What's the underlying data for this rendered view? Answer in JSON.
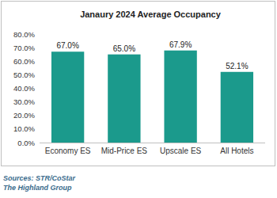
{
  "chart_data": {
    "type": "bar",
    "title": "Janaury 2024 Average Occupancy",
    "categories": [
      "Economy ES",
      "Mid-Price ES",
      "Upscale ES",
      "All Hotels"
    ],
    "values": [
      67.0,
      65.0,
      67.9,
      52.1
    ],
    "value_labels": [
      "67.0%",
      "65.0%",
      "67.9%",
      "52.1%"
    ],
    "color": "#1b9a8c",
    "ylim": [
      0,
      80
    ],
    "yticks": [
      {
        "value": 0,
        "label": "0.0%"
      },
      {
        "value": 10,
        "label": "10.0%"
      },
      {
        "value": 20,
        "label": "20.0%"
      },
      {
        "value": 30,
        "label": "30.0%"
      },
      {
        "value": 40,
        "label": "40.0%"
      },
      {
        "value": 50,
        "label": "50.0%"
      },
      {
        "value": 60,
        "label": "60.0%"
      },
      {
        "value": 70,
        "label": "70.0%"
      },
      {
        "value": 80,
        "label": "80.0%"
      }
    ],
    "grid": false,
    "data_labels": true,
    "annotations": [
      "Sources: STR/CoStar",
      "The Highland Group"
    ]
  }
}
